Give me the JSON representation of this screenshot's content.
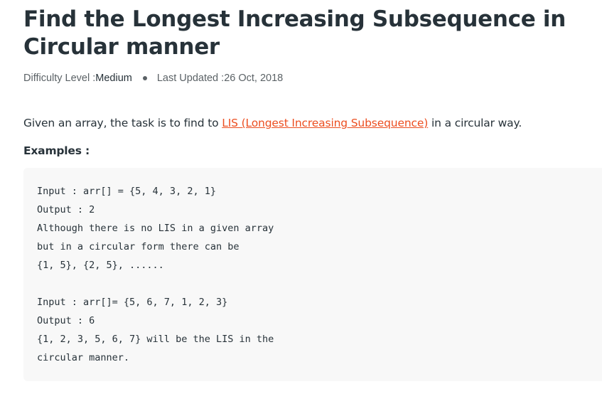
{
  "article": {
    "title": "Find the Longest Increasing Subsequence in Circular manner",
    "meta": {
      "difficulty_label": "Difficulty Level : ",
      "difficulty_value": "Medium",
      "updated_label": "Last Updated : ",
      "updated_value": "26 Oct, 2018"
    },
    "intro": {
      "before": "Given an array, the task is to find to ",
      "link": "LIS (Longest Increasing Subsequence)",
      "after": " in a circular way."
    },
    "examples_label": "Examples :",
    "code_lines": [
      "Input : arr[] = {5, 4, 3, 2, 1}",
      "Output : 2",
      "Although there is no LIS in a given array",
      "but in a circular form there can be",
      "{1, 5}, {2, 5}, ......",
      "Input : arr[]= {5, 6, 7, 1, 2, 3}",
      "Output : 6",
      "{1, 2, 3, 5, 6, 7} will be the LIS in the",
      "circular manner."
    ]
  },
  "colors": {
    "text": "#273239",
    "muted": "#5b6266",
    "link": "#ec4e20",
    "code_bg": "#f8f8f8"
  }
}
